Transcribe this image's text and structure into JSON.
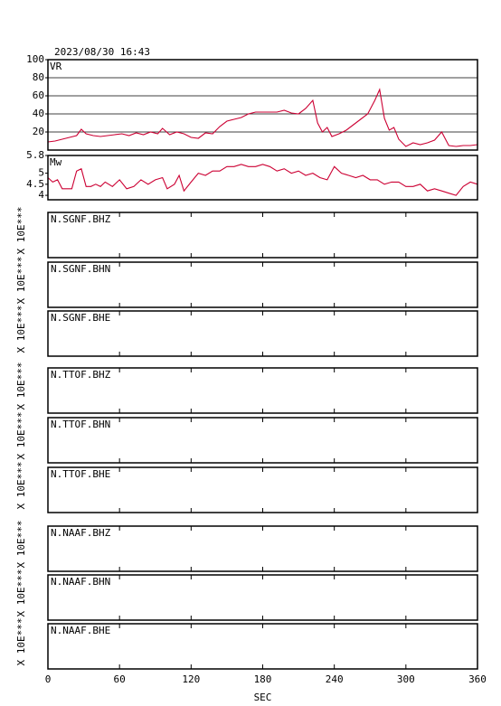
{
  "timestamp": "2023/08/30 16:43",
  "time_axis": {
    "xlabel": "SEC",
    "xlim": [
      0,
      360
    ],
    "xticks": [
      0,
      60,
      120,
      180,
      240,
      300,
      360
    ]
  },
  "chart_data": [
    {
      "type": "line",
      "label": "VR",
      "color": "#cc0033",
      "ylim": [
        0,
        100
      ],
      "yticks": [
        20,
        40,
        60,
        80,
        100
      ],
      "grid": true,
      "x": [
        0,
        6,
        12,
        18,
        24,
        28,
        32,
        38,
        44,
        50,
        56,
        62,
        68,
        74,
        80,
        86,
        92,
        96,
        102,
        108,
        114,
        120,
        126,
        132,
        138,
        144,
        150,
        156,
        162,
        168,
        174,
        180,
        186,
        192,
        198,
        204,
        210,
        216,
        222,
        226,
        230,
        234,
        238,
        244,
        250,
        256,
        262,
        268,
        274,
        278,
        282,
        286,
        290,
        294,
        300,
        306,
        312,
        318,
        324,
        330,
        336,
        342,
        348,
        354,
        360
      ],
      "values": [
        9,
        10,
        12,
        14,
        16,
        23,
        18,
        16,
        15,
        16,
        17,
        18,
        16,
        19,
        17,
        20,
        18,
        24,
        17,
        20,
        18,
        14,
        13,
        19,
        18,
        26,
        32,
        34,
        36,
        40,
        42,
        42,
        42,
        42,
        44,
        41,
        40,
        46,
        55,
        30,
        20,
        25,
        15,
        18,
        22,
        28,
        34,
        40,
        55,
        67,
        35,
        22,
        25,
        12,
        4,
        8,
        6,
        8,
        11,
        20,
        5,
        4,
        5,
        5,
        6
      ]
    },
    {
      "type": "line",
      "label": "Mw",
      "color": "#cc0033",
      "ylim": [
        3.8,
        5.8
      ],
      "yticks": [
        4.0,
        4.5,
        5.0,
        5.8
      ],
      "grid": false,
      "x": [
        0,
        4,
        8,
        12,
        16,
        20,
        24,
        28,
        32,
        36,
        40,
        44,
        48,
        54,
        60,
        66,
        72,
        78,
        84,
        90,
        96,
        100,
        106,
        110,
        114,
        120,
        126,
        132,
        138,
        144,
        150,
        156,
        162,
        168,
        174,
        180,
        186,
        192,
        198,
        204,
        210,
        216,
        222,
        228,
        234,
        240,
        246,
        252,
        258,
        264,
        270,
        276,
        282,
        288,
        294,
        300,
        306,
        312,
        318,
        324,
        330,
        336,
        342,
        348,
        354,
        360
      ],
      "values": [
        4.8,
        4.6,
        4.7,
        4.3,
        4.3,
        4.3,
        5.1,
        5.2,
        4.4,
        4.4,
        4.5,
        4.4,
        4.6,
        4.4,
        4.7,
        4.3,
        4.4,
        4.7,
        4.5,
        4.7,
        4.8,
        4.3,
        4.5,
        4.9,
        4.2,
        4.6,
        5.0,
        4.9,
        5.1,
        5.1,
        5.3,
        5.3,
        5.4,
        5.3,
        5.3,
        5.4,
        5.3,
        5.1,
        5.2,
        5.0,
        5.1,
        4.9,
        5.0,
        4.8,
        4.7,
        5.3,
        5.0,
        4.9,
        4.8,
        4.9,
        4.7,
        4.7,
        4.5,
        4.6,
        4.6,
        4.4,
        4.4,
        4.5,
        4.2,
        4.3,
        4.2,
        4.1,
        4.0,
        4.4,
        4.6,
        4.5
      ]
    }
  ],
  "waveforms": [
    {
      "label": "N.SGNF.BHZ",
      "scale_label": "X 10E***"
    },
    {
      "label": "N.SGNF.BHN",
      "scale_label": "X 10E***"
    },
    {
      "label": "N.SGNF.BHE",
      "scale_label": "X 10E***"
    },
    {
      "label": "N.TTOF.BHZ",
      "scale_label": "X 10E***"
    },
    {
      "label": "N.TTOF.BHN",
      "scale_label": "X 10E***"
    },
    {
      "label": "N.TTOF.BHE",
      "scale_label": "X 10E***"
    },
    {
      "label": "N.NAAF.BHZ",
      "scale_label": "X 10E***"
    },
    {
      "label": "N.NAAF.BHN",
      "scale_label": "X 10E***"
    },
    {
      "label": "N.NAAF.BHE",
      "scale_label": "X 10E***"
    }
  ]
}
